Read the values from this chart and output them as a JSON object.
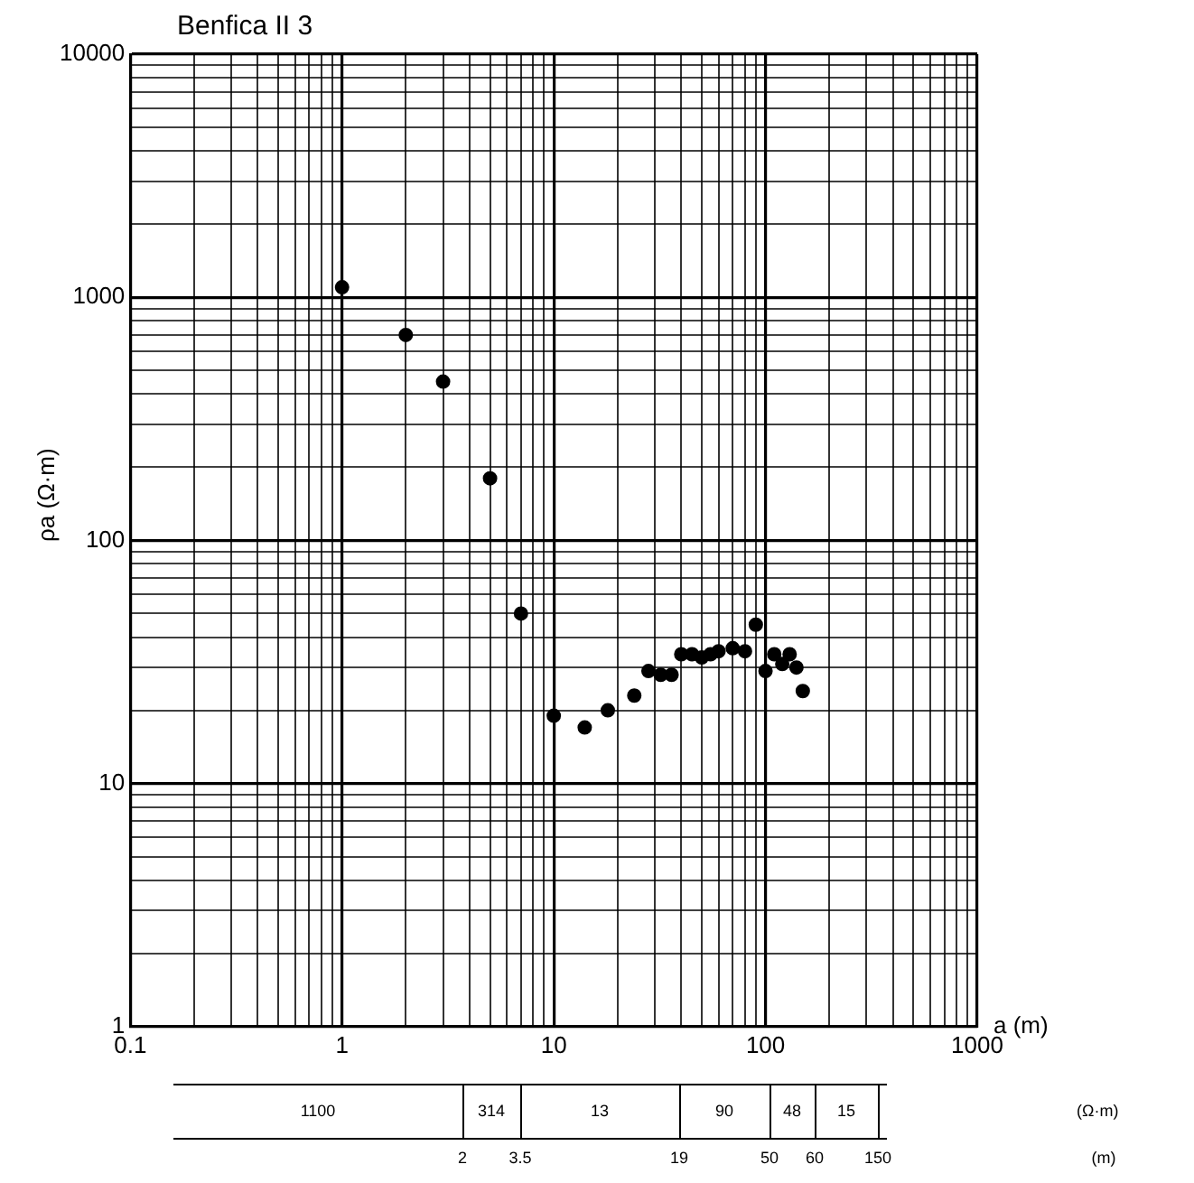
{
  "chart_data": {
    "type": "scatter",
    "title": "Benfica II 3",
    "xlabel": "a (m)",
    "ylabel": "ρa (Ω·m)",
    "x": [
      1,
      2,
      3,
      5,
      7,
      10,
      14,
      18,
      24,
      28,
      32,
      36,
      40,
      45,
      50,
      55,
      60,
      70,
      80,
      90,
      100,
      110,
      120,
      130,
      140,
      150
    ],
    "series": [
      {
        "color": "#000000",
        "values": [
          1100,
          700,
          450,
          180,
          50,
          19,
          17,
          20,
          23,
          29,
          28,
          28,
          34,
          34,
          33,
          34,
          35,
          36,
          35,
          45,
          29,
          34,
          31,
          34,
          30,
          24
        ]
      }
    ],
    "log": "xy",
    "xlim": [
      0.1,
      1000
    ],
    "ylim": [
      1,
      10000
    ],
    "xticks": [
      0.1,
      {
        "value": 0.2,
        "label": null
      },
      {
        "value": 0.3,
        "label": null
      },
      {
        "value": 0.4,
        "label": null
      },
      {
        "value": 0.5,
        "label": null
      },
      {
        "value": 0.6,
        "label": null
      },
      {
        "value": 0.7,
        "label": null
      },
      {
        "value": 0.8,
        "label": null
      },
      {
        "value": 0.9,
        "label": null
      },
      1,
      {
        "value": 2,
        "label": null
      },
      {
        "value": 3,
        "label": null
      },
      {
        "value": 4,
        "label": null
      },
      {
        "value": 5,
        "label": null
      },
      {
        "value": 6,
        "label": null
      },
      {
        "value": 7,
        "label": null
      },
      {
        "value": 8,
        "label": null
      },
      {
        "value": 9,
        "label": null
      },
      10,
      {
        "value": 20,
        "label": null
      },
      {
        "value": 30,
        "label": null
      },
      {
        "value": 40,
        "label": null
      },
      {
        "value": 50,
        "label": null
      },
      {
        "value": 60,
        "label": null
      },
      {
        "value": 70,
        "label": null
      },
      {
        "value": 80,
        "label": null
      },
      {
        "value": 90,
        "label": null
      },
      100,
      {
        "value": 200,
        "label": null
      },
      {
        "value": 300,
        "label": null
      },
      {
        "value": 400,
        "label": null
      },
      {
        "value": 500,
        "label": null
      },
      {
        "value": 600,
        "label": null
      },
      {
        "value": 700,
        "label": null
      },
      {
        "value": 800,
        "label": null
      },
      {
        "value": 900,
        "label": null
      },
      1000
    ],
    "yticks": [
      1,
      {
        "value": 2,
        "label": null
      },
      {
        "value": 3,
        "label": null
      },
      {
        "value": 4,
        "label": null
      },
      {
        "value": 5,
        "label": null
      },
      {
        "value": 6,
        "label": null
      },
      {
        "value": 7,
        "label": null
      },
      {
        "value": 8,
        "label": null
      },
      {
        "value": 9,
        "label": null
      },
      10,
      {
        "value": 20,
        "label": null
      },
      {
        "value": 30,
        "label": null
      },
      {
        "value": 40,
        "label": null
      },
      {
        "value": 50,
        "label": null
      },
      {
        "value": 60,
        "label": null
      },
      {
        "value": 70,
        "label": null
      },
      {
        "value": 80,
        "label": null
      },
      {
        "value": 90,
        "label": null
      },
      100,
      {
        "value": 200,
        "label": null
      },
      {
        "value": 300,
        "label": null
      },
      {
        "value": 400,
        "label": null
      },
      {
        "value": 500,
        "label": null
      },
      {
        "value": 600,
        "label": null
      },
      {
        "value": 700,
        "label": null
      },
      {
        "value": 800,
        "label": null
      },
      {
        "value": 900,
        "label": null
      },
      1000,
      {
        "value": 2000,
        "label": null
      },
      {
        "value": 3000,
        "label": null
      },
      {
        "value": 4000,
        "label": null
      },
      {
        "value": 5000,
        "label": null
      },
      {
        "value": 6000,
        "label": null
      },
      {
        "value": 7000,
        "label": null
      },
      {
        "value": 8000,
        "label": null
      },
      {
        "value": 9000,
        "label": null
      },
      10000
    ],
    "grid": true,
    "legend": false,
    "marker": "circle",
    "annotations": [
      "1100",
      "314",
      "13",
      "90",
      "48",
      "15",
      "(Ω·m)",
      "2",
      "3.5",
      "19",
      "50",
      "60",
      "150",
      "(m)"
    ]
  }
}
